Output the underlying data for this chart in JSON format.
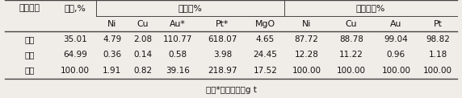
{
  "header1": [
    "产品名称",
    "产率,%",
    "品位，%",
    "回收率，%"
  ],
  "header2": [
    "Ni",
    "Cu",
    "Au*",
    "Pt*",
    "MgO",
    "Ni",
    "Cu",
    "Au",
    "Pt"
  ],
  "rows": [
    [
      "精矿",
      "35.01",
      "4.79",
      "2.08",
      "110.77",
      "618.07",
      "4.65",
      "87.72",
      "88.78",
      "99.04",
      "98.82"
    ],
    [
      "尾矿",
      "64.99",
      "0.36",
      "0.14",
      "0.58",
      "3.98",
      "24.45",
      "12.28",
      "11.22",
      "0.96",
      "1.18"
    ],
    [
      "原矿",
      "100.00",
      "1.91",
      "0.82",
      "39.16",
      "218.97",
      "17.52",
      "100.00",
      "100.00",
      "100.00",
      "100.00"
    ]
  ],
  "footnote": "注：*表示单位为g t",
  "bg_color": "#f0ede8",
  "line_color": "#444444",
  "font_size": 7.5,
  "header_font_size": 7.8,
  "footnote_font_size": 7.5
}
